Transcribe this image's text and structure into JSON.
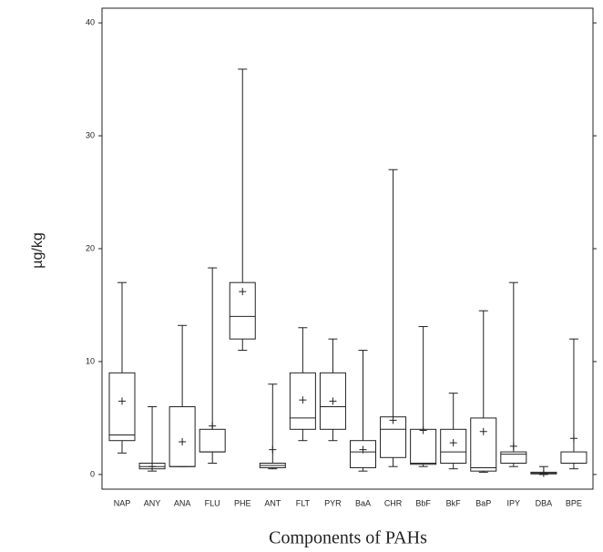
{
  "chart_data": {
    "type": "box",
    "y_label": "µg/kg",
    "x_label": "Components of PAHs",
    "categories": [
      "NAP",
      "ANY",
      "ANA",
      "FLU",
      "PHE",
      "ANT",
      "FLT",
      "PYR",
      "BaA",
      "CHR",
      "BbF",
      "BkF",
      "BaP",
      "IPY",
      "DBA",
      "BPE"
    ],
    "min": [
      1.9,
      0.3,
      0.7,
      1,
      11,
      0.5,
      3,
      3,
      0.3,
      0.7,
      0.7,
      0.5,
      0.2,
      0.7,
      0,
      0.5
    ],
    "q1": [
      3,
      0.5,
      0.7,
      2,
      12,
      0.6,
      4,
      4,
      0.6,
      1.5,
      0.9,
      1,
      0.3,
      1,
      0.05,
      1
    ],
    "median": [
      3.5,
      0.7,
      0.7,
      2,
      14,
      0.8,
      5,
      6,
      2,
      4,
      1,
      2,
      0.6,
      1.8,
      0.1,
      1
    ],
    "q3": [
      9,
      1,
      6,
      4,
      17,
      1,
      9,
      9,
      3,
      5.1,
      4,
      4,
      5,
      2,
      0.2,
      2
    ],
    "max": [
      17,
      6,
      13.2,
      18.3,
      35.9,
      8,
      13,
      12,
      11,
      27,
      13.1,
      7.2,
      14.5,
      17,
      0.7,
      12
    ],
    "mean": [
      6.5,
      0.7,
      2.9,
      4.3,
      16.2,
      2.2,
      6.6,
      6.5,
      2.2,
      4.8,
      3.9,
      2.8,
      3.8,
      2.5,
      0.1,
      3.2
    ],
    "color": "#222222",
    "ylim": [
      -1.3,
      41.3
    ],
    "yticks": [
      0,
      10,
      20,
      30,
      40
    ]
  }
}
